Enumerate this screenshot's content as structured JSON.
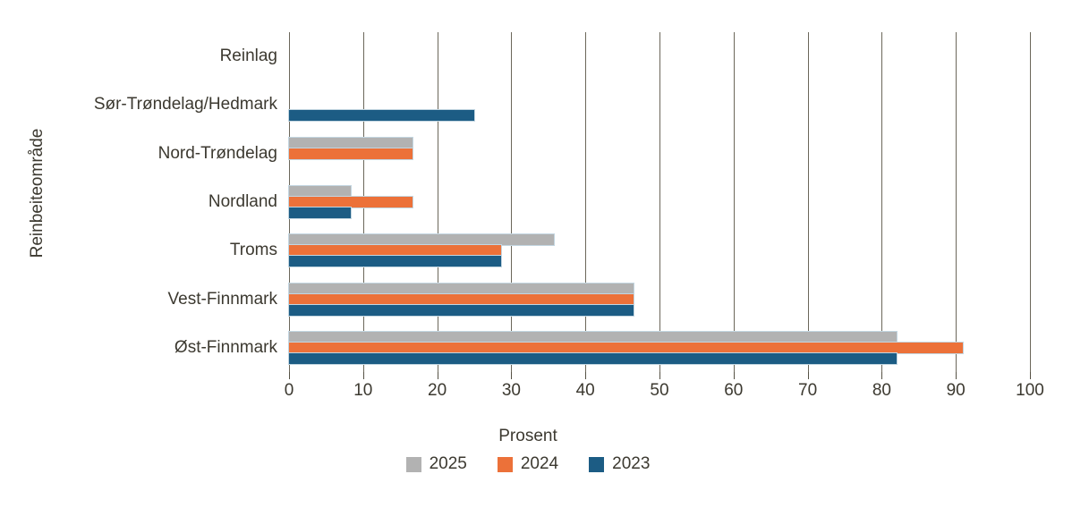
{
  "figure": {
    "background": "#ffffff"
  },
  "chart_data": {
    "type": "bar",
    "orientation": "horizontal",
    "title": "",
    "xlabel": "Prosent",
    "ylabel": "Reinbeiteområde",
    "xlim": [
      0,
      100
    ],
    "x_ticks": [
      0,
      10,
      20,
      30,
      40,
      50,
      60,
      70,
      80,
      90,
      100
    ],
    "grid": "vertical",
    "legend_position": "bottom",
    "categories": [
      "Reinlag",
      "Sør-Trøndelag/Hedmark",
      "Nord-Trøndelag",
      "Nordland",
      "Troms",
      "Vest-Finnmark",
      "Øst-Finnmark"
    ],
    "series": [
      {
        "name": "2025",
        "color": "#b2b2b2",
        "values": [
          0,
          0,
          16.7,
          8.3,
          35.7,
          46.5,
          82
        ]
      },
      {
        "name": "2024",
        "color": "#ec7139",
        "values": [
          0,
          0,
          16.7,
          16.7,
          28.6,
          46.5,
          91
        ]
      },
      {
        "name": "2023",
        "color": "#1c5c84",
        "values": [
          0,
          25,
          0,
          8.3,
          28.6,
          46.5,
          82
        ]
      }
    ],
    "notes": "Bars per category are stacked vertically in order 2025 (top), 2024 (middle), 2023 (bottom); zero values draw no bar."
  },
  "colors": {
    "text": "#3c3930",
    "gridline": "#6b675a",
    "tick": "#555144",
    "bar_outline": "#c3d6e1",
    "background": "#ffffff"
  }
}
